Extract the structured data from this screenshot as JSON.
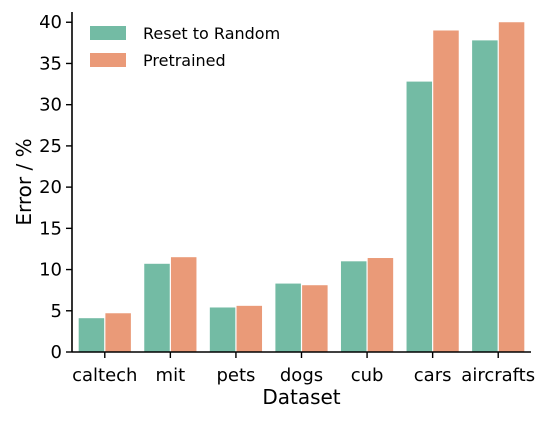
{
  "chart_data": {
    "type": "bar",
    "title": "",
    "xlabel": "Dataset",
    "ylabel": "Error / %",
    "ylim": [
      0,
      41
    ],
    "yticks": [
      0,
      5,
      10,
      15,
      20,
      25,
      30,
      35,
      40
    ],
    "grid": false,
    "legend_position": "top-left",
    "categories": [
      "caltech",
      "mit",
      "pets",
      "dogs",
      "cub",
      "cars",
      "aircrafts"
    ],
    "series": [
      {
        "name": "Reset to Random",
        "color": "#73bba4",
        "values": [
          4.1,
          10.7,
          5.4,
          8.3,
          11.0,
          32.8,
          37.8
        ]
      },
      {
        "name": "Pretrained",
        "color": "#ea9a78",
        "values": [
          4.7,
          11.5,
          5.6,
          8.1,
          11.4,
          39.0,
          40.0
        ]
      }
    ]
  }
}
